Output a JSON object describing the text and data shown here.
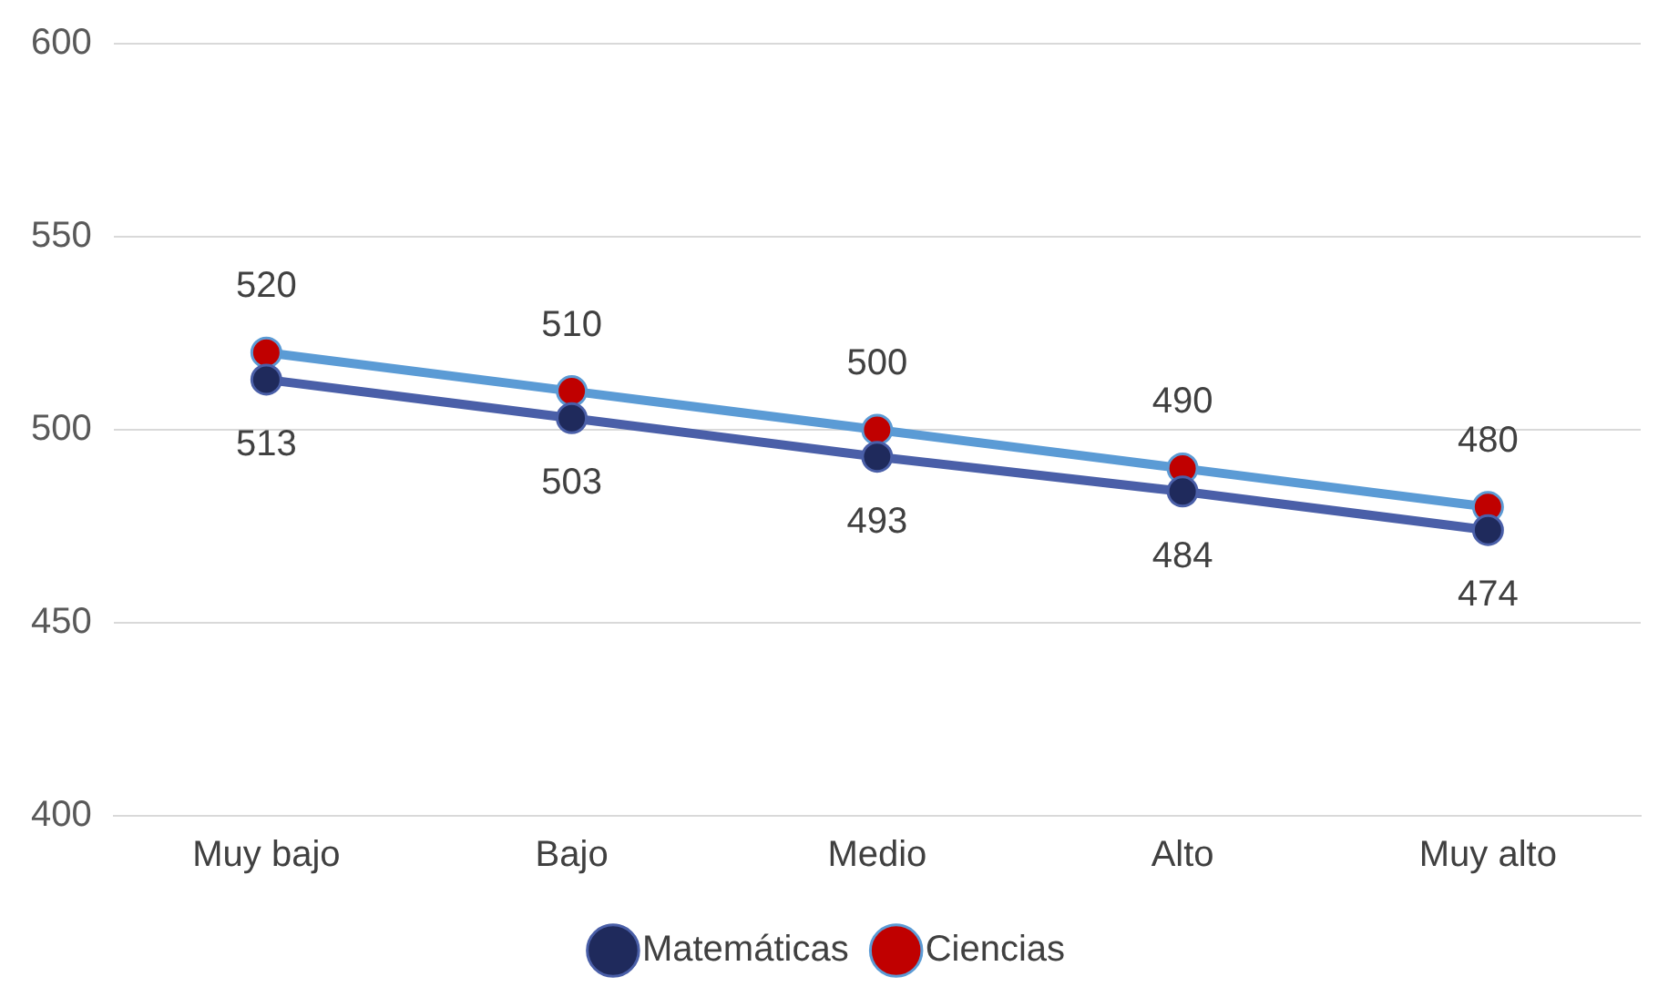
{
  "chart_data": {
    "type": "line",
    "categories": [
      "Muy bajo",
      "Bajo",
      "Medio",
      "Alto",
      "Muy alto"
    ],
    "series": [
      {
        "name": "Matemáticas",
        "color": "#4a5fa8",
        "colors": [
          "#1f2a5c",
          "#1f2a5c",
          "#1f2a5c",
          "#1f2a5c",
          "#1f2a5c"
        ],
        "values": [
          513,
          503,
          493,
          484,
          474
        ]
      },
      {
        "name": "Ciencias",
        "color": "#5b9bd5",
        "colors": [
          "#c00000",
          "#c00000",
          "#c00000",
          "#c00000",
          "#c00000"
        ],
        "values": [
          520,
          510,
          500,
          490,
          480
        ]
      }
    ],
    "ylim": [
      400,
      600
    ],
    "yticks": [
      400,
      450,
      500,
      550,
      600
    ],
    "grid": "y",
    "legend": "bottom",
    "marker": "circle",
    "line_style": "solid",
    "data_labels": true
  }
}
